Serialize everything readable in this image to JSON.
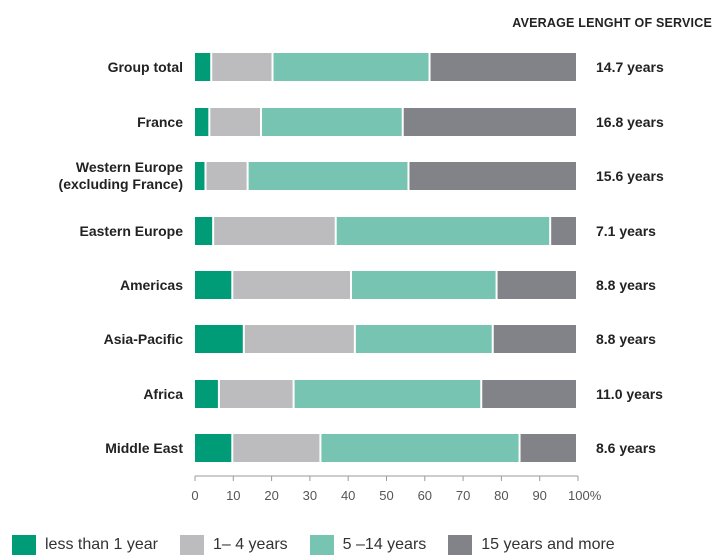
{
  "chart_data": {
    "type": "bar",
    "orientation": "horizontal",
    "stacked": true,
    "header": "AVERAGE LENGHT OF SERVICE",
    "categories": [
      "Group total",
      "France",
      "Western Europe\n(excluding France)",
      "Eastern Europe",
      "Americas",
      "Asia-Pacific",
      "Africa",
      "Middle East"
    ],
    "series": [
      {
        "name": "less than 1 year",
        "color": "#009B77",
        "values": [
          4.5,
          4,
          3,
          5,
          10,
          13,
          6.5,
          10
        ]
      },
      {
        "name": "1- 4 years",
        "color": "#BCBCBF",
        "values": [
          16,
          13.5,
          11,
          32,
          31,
          29,
          19.5,
          23
        ]
      },
      {
        "name": "5 -14 years",
        "color": "#77C4B2",
        "values": [
          41,
          37,
          42,
          56,
          38,
          36,
          49,
          52
        ]
      },
      {
        "name": "15 years and more",
        "color": "#828388",
        "values": [
          38.5,
          45.5,
          44,
          7,
          21,
          22,
          25,
          15
        ]
      }
    ],
    "average_service": [
      "14.7 years",
      "16.8 years",
      "15.6 years",
      "7.1 years",
      "8.8 years",
      "8.8 years",
      "11.0 years",
      "8.6 years"
    ],
    "xlim": [
      0,
      100
    ],
    "xticks": [
      "0",
      "10",
      "20",
      "30",
      "40",
      "50",
      "60",
      "70",
      "80",
      "90",
      "100%"
    ],
    "grid": false,
    "legend_position": "bottom"
  },
  "legend": [
    {
      "label": "less than 1 year",
      "color": "#009B77"
    },
    {
      "label": "1– 4 years",
      "color": "#BCBCBF"
    },
    {
      "label": "5 –14 years",
      "color": "#77C4B2"
    },
    {
      "label": "15 years and more",
      "color": "#828388"
    }
  ]
}
